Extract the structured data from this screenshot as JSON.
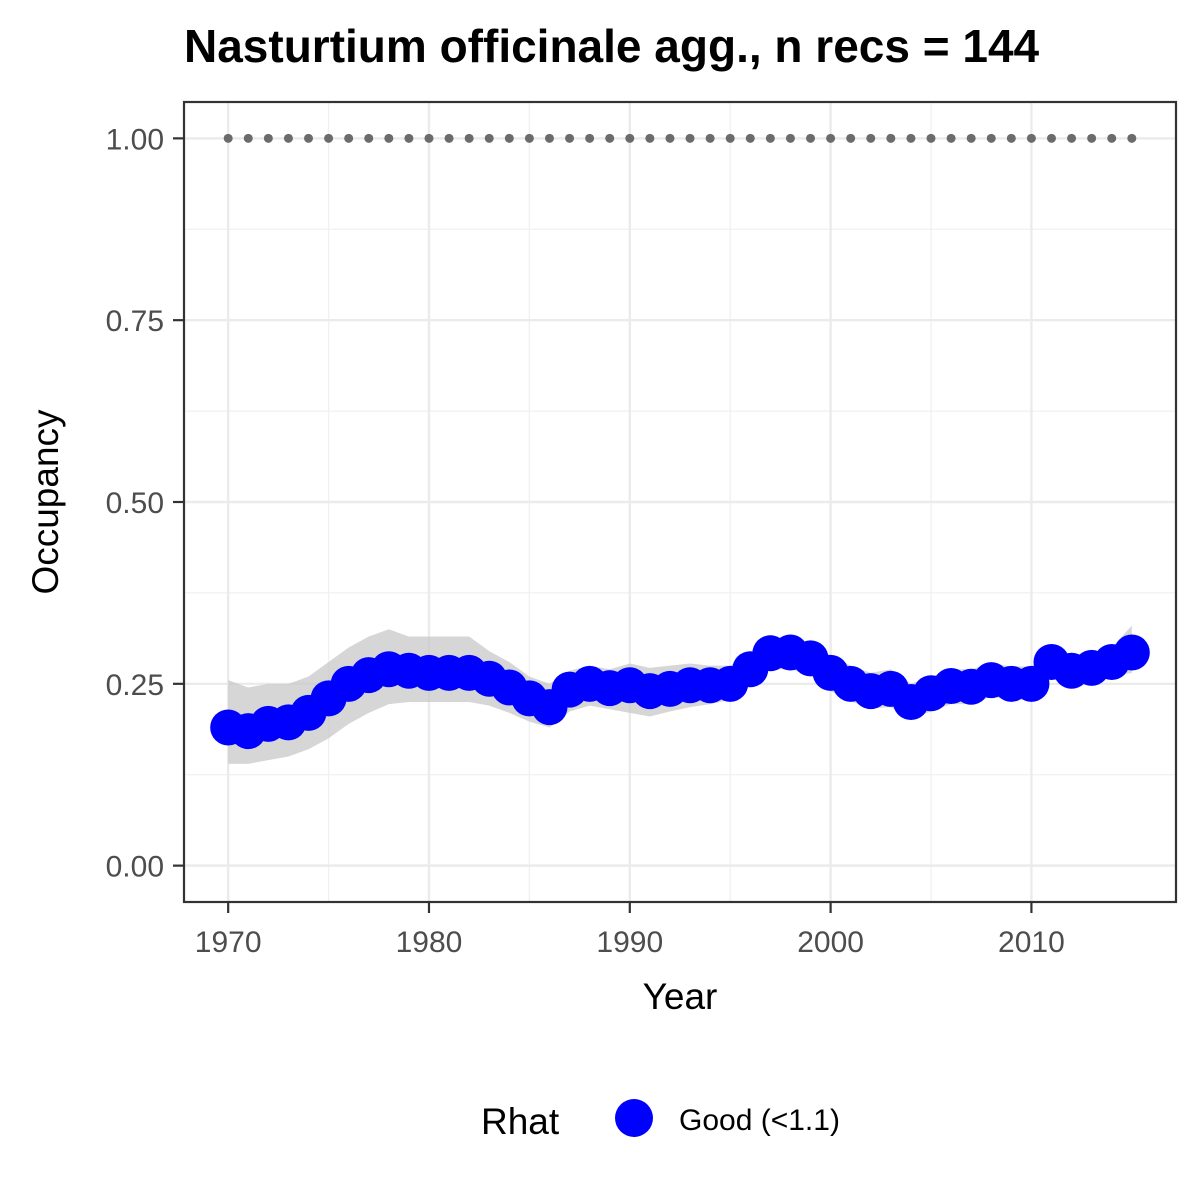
{
  "chart_data": {
    "type": "line",
    "title": "Nasturtium officinale agg., n recs = 144",
    "xlabel": "Year",
    "ylabel": "Occupancy",
    "xlim": [
      1967.8,
      2017.2
    ],
    "ylim": [
      -0.05,
      1.05
    ],
    "x_ticks": [
      1970,
      1980,
      1990,
      2000,
      2010
    ],
    "x_tick_labels": [
      "1970",
      "1980",
      "1990",
      "2000",
      "2010"
    ],
    "y_ticks": [
      0,
      0.25,
      0.5,
      0.75,
      1
    ],
    "y_tick_labels": [
      "0.00",
      "0.25",
      "0.50",
      "0.75",
      "1.00"
    ],
    "grid": true,
    "legend": {
      "title": "Rhat",
      "position": "bottom",
      "entries": [
        {
          "label": "Good (<1.1)",
          "color": "#0000ff"
        }
      ]
    },
    "x": [
      1970,
      1971,
      1972,
      1973,
      1974,
      1975,
      1976,
      1977,
      1978,
      1979,
      1980,
      1981,
      1982,
      1983,
      1984,
      1985,
      1986,
      1987,
      1988,
      1989,
      1990,
      1991,
      1992,
      1993,
      1994,
      1995,
      1996,
      1997,
      1998,
      1999,
      2000,
      2001,
      2002,
      2003,
      2004,
      2005,
      2006,
      2007,
      2008,
      2009,
      2010,
      2011,
      2012,
      2013,
      2014,
      2015
    ],
    "series": [
      {
        "name": "Good (<1.1)",
        "color": "#0000ff",
        "values": [
          0.19,
          0.185,
          0.195,
          0.197,
          0.21,
          0.23,
          0.25,
          0.262,
          0.27,
          0.268,
          0.265,
          0.265,
          0.265,
          0.257,
          0.245,
          0.23,
          0.218,
          0.242,
          0.25,
          0.244,
          0.248,
          0.24,
          0.243,
          0.248,
          0.248,
          0.25,
          0.27,
          0.292,
          0.293,
          0.285,
          0.265,
          0.25,
          0.24,
          0.243,
          0.225,
          0.237,
          0.247,
          0.246,
          0.255,
          0.25,
          0.25,
          0.28,
          0.268,
          0.272,
          0.28,
          0.293
        ],
        "lower": [
          0.14,
          0.14,
          0.145,
          0.15,
          0.16,
          0.175,
          0.195,
          0.21,
          0.222,
          0.225,
          0.225,
          0.225,
          0.225,
          0.22,
          0.21,
          0.198,
          0.19,
          0.212,
          0.22,
          0.215,
          0.21,
          0.205,
          0.212,
          0.218,
          0.222,
          0.228,
          0.248,
          0.27,
          0.27,
          0.262,
          0.24,
          0.226,
          0.216,
          0.218,
          0.202,
          0.212,
          0.222,
          0.222,
          0.232,
          0.228,
          0.228,
          0.258,
          0.248,
          0.252,
          0.26,
          0.265
        ],
        "upper": [
          0.255,
          0.245,
          0.25,
          0.25,
          0.26,
          0.28,
          0.3,
          0.315,
          0.325,
          0.315,
          0.315,
          0.315,
          0.315,
          0.295,
          0.28,
          0.26,
          0.25,
          0.268,
          0.275,
          0.27,
          0.278,
          0.272,
          0.275,
          0.278,
          0.275,
          0.275,
          0.292,
          0.31,
          0.31,
          0.3,
          0.29,
          0.275,
          0.265,
          0.27,
          0.25,
          0.26,
          0.27,
          0.27,
          0.278,
          0.274,
          0.274,
          0.3,
          0.29,
          0.29,
          0.3,
          0.33
        ]
      },
      {
        "name": "",
        "color": "#6b6b6b",
        "style": "dotted",
        "values": [
          1,
          1,
          1,
          1,
          1,
          1,
          1,
          1,
          1,
          1,
          1,
          1,
          1,
          1,
          1,
          1,
          1,
          1,
          1,
          1,
          1,
          1,
          1,
          1,
          1,
          1,
          1,
          1,
          1,
          1,
          1,
          1,
          1,
          1,
          1,
          1,
          1,
          1,
          1,
          1,
          1,
          1,
          1,
          1,
          1,
          1
        ]
      }
    ]
  }
}
